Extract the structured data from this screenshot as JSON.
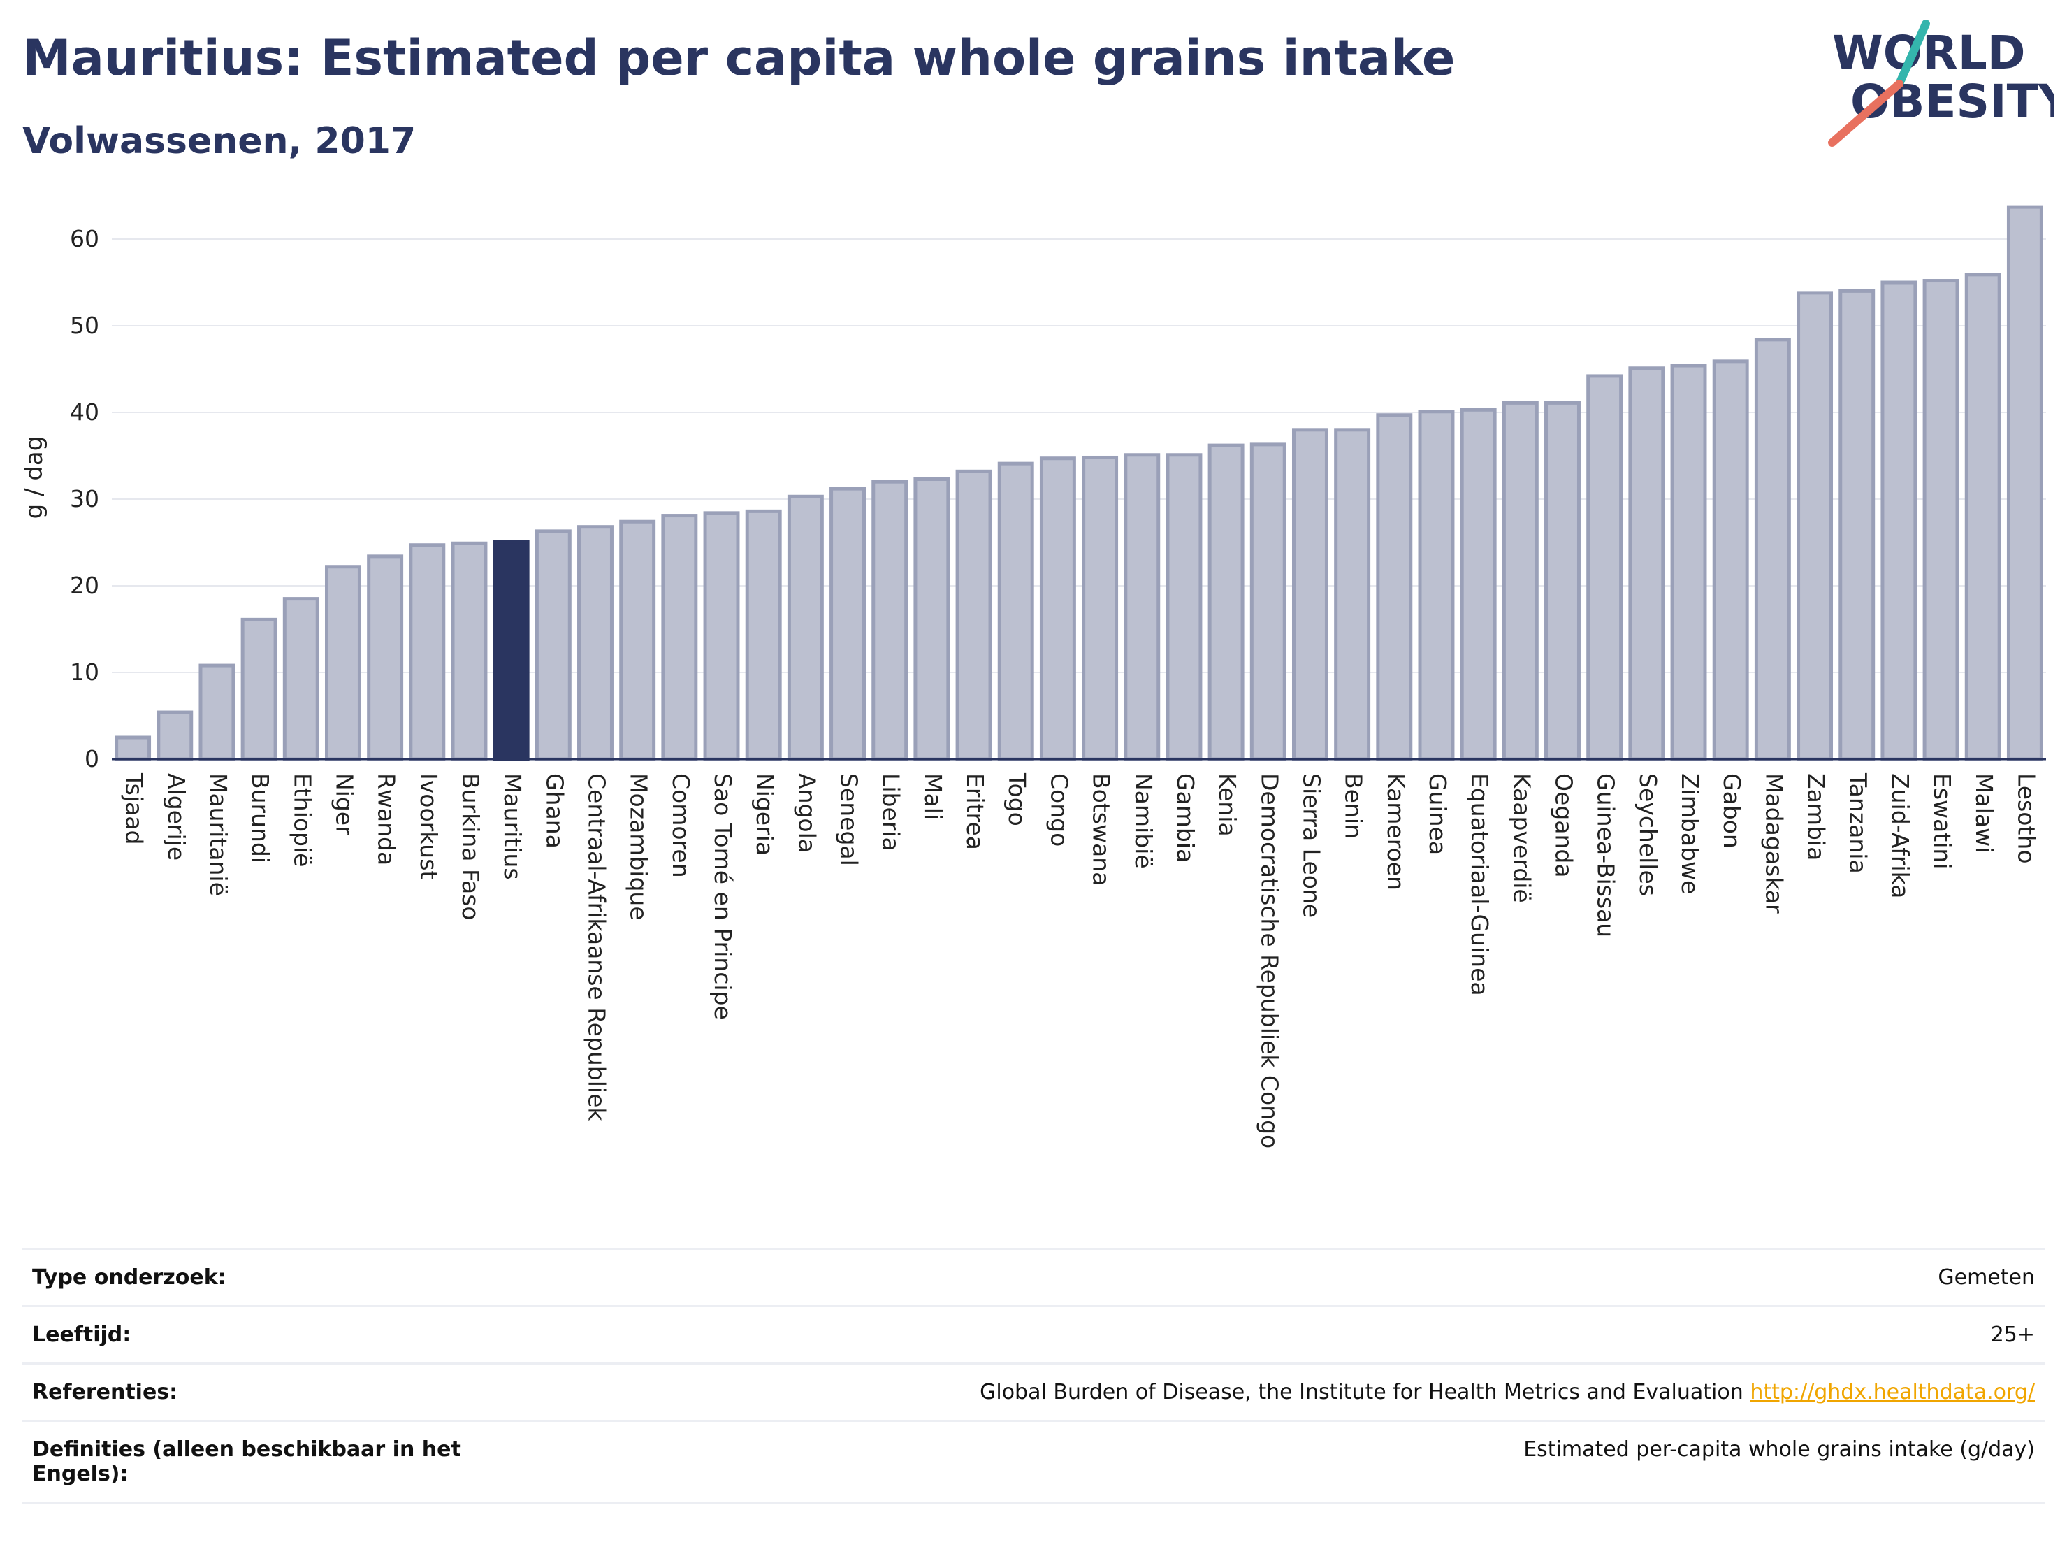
{
  "header": {
    "title": "Mauritius: Estimated per capita whole grains intake",
    "subtitle": "Volwassenen, 2017"
  },
  "logo": {
    "line1": "WORLD",
    "line2": "OBESITY"
  },
  "colors": {
    "bar": "#bcc0d0",
    "bar_stroke": "#9aa0b8",
    "highlight": "#2a3560",
    "grid": "#e6e8ee"
  },
  "chart_data": {
    "type": "bar",
    "ylabel": "g / dag",
    "ylim": [
      0,
      65
    ],
    "yticks": [
      0,
      10,
      20,
      30,
      40,
      50,
      60
    ],
    "grid": true,
    "highlight": "Mauritius",
    "categories": [
      "Tsjaad",
      "Algerije",
      "Mauritanië",
      "Burundi",
      "Ethiopië",
      "Niger",
      "Rwanda",
      "Ivoorkust",
      "Burkina Faso",
      "Mauritius",
      "Ghana",
      "Centraal-Afrikaanse Republiek",
      "Mozambique",
      "Comoren",
      "Sao Tomé en Principe",
      "Nigeria",
      "Angola",
      "Senegal",
      "Liberia",
      "Mali",
      "Eritrea",
      "Togo",
      "Congo",
      "Botswana",
      "Namibië",
      "Gambia",
      "Kenia",
      "Democratische Republiek Congo",
      "Sierra Leone",
      "Benin",
      "Kameroen",
      "Guinea",
      "Equatoriaal-Guinea",
      "Kaapverdië",
      "Oeganda",
      "Guinea-Bissau",
      "Seychelles",
      "Zimbabwe",
      "Gabon",
      "Madagaskar",
      "Zambia",
      "Tanzania",
      "Zuid-Afrika",
      "Eswatini",
      "Malawi",
      "Lesotho"
    ],
    "values": [
      2.5,
      5.4,
      10.8,
      16.1,
      18.5,
      22.2,
      23.4,
      24.7,
      24.9,
      25.1,
      26.3,
      26.8,
      27.4,
      28.1,
      28.4,
      28.6,
      30.3,
      31.2,
      32.0,
      32.3,
      33.2,
      34.1,
      34.7,
      34.8,
      35.1,
      35.1,
      36.2,
      36.3,
      38.0,
      38.0,
      39.7,
      40.1,
      40.3,
      41.1,
      41.1,
      44.2,
      45.1,
      45.4,
      45.9,
      48.4,
      53.8,
      54.0,
      55.0,
      55.2,
      55.9,
      63.7
    ]
  },
  "meta": {
    "rows": [
      {
        "key": "Type onderzoek:",
        "value": "Gemeten"
      },
      {
        "key": "Leeftijd:",
        "value": "25+"
      },
      {
        "key": "Referenties:",
        "value": "Global Burden of Disease, the Institute for Health Metrics and Evaluation",
        "link": "http://ghdx.healthdata.org/"
      },
      {
        "key": "Definities (alleen beschikbaar in het Engels):",
        "value": "Estimated per-capita whole grains intake (g/day)"
      }
    ]
  }
}
